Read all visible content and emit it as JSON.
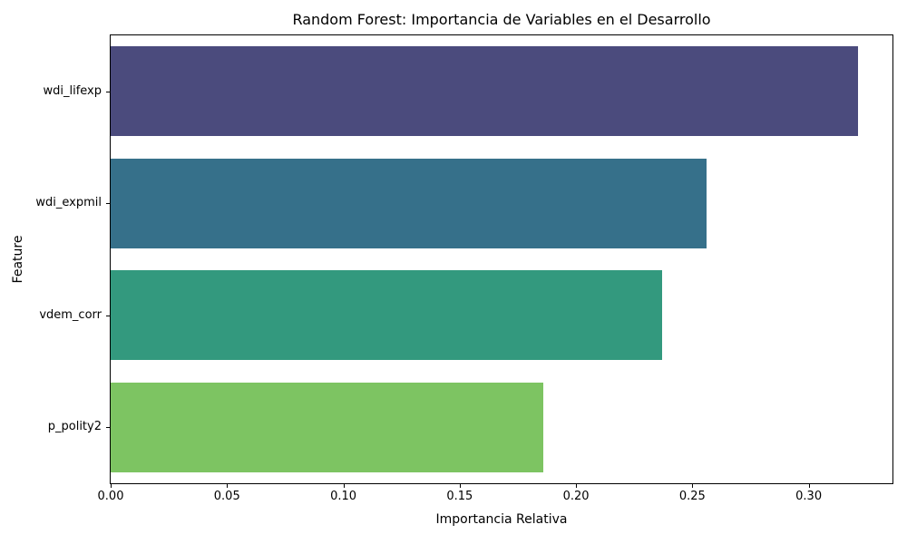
{
  "chart_data": {
    "type": "bar",
    "orientation": "horizontal",
    "title": "Random Forest: Importancia de Variables en el Desarrollo",
    "xlabel": "Importancia Relativa",
    "ylabel": "Feature",
    "categories": [
      "wdi_lifexp",
      "wdi_expmil",
      "vdem_corr",
      "p_polity2"
    ],
    "values": [
      0.321,
      0.256,
      0.237,
      0.186
    ],
    "bar_colors": [
      "#4b4b7d",
      "#36708a",
      "#33997e",
      "#7dc462"
    ],
    "xlim": [
      0,
      0.336
    ],
    "x_ticks": [
      0.0,
      0.05,
      0.1,
      0.15,
      0.2,
      0.25,
      0.3
    ],
    "x_tick_labels": [
      "0.00",
      "0.05",
      "0.10",
      "0.15",
      "0.20",
      "0.25",
      "0.30"
    ],
    "grid": false,
    "legend": null,
    "background_color": "#ffffff",
    "spine_color": "#000000"
  }
}
